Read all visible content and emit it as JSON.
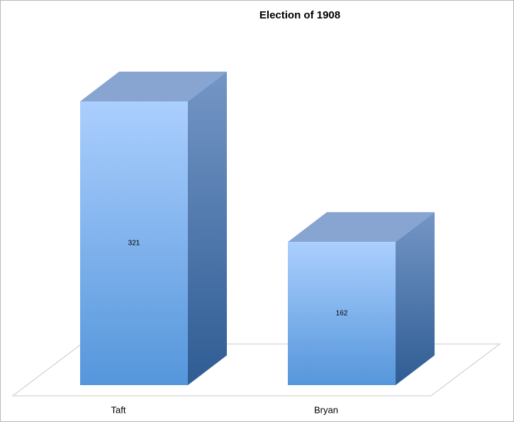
{
  "chart_data": {
    "type": "bar3d",
    "title": "Election of 1908",
    "categories": [
      "Taft",
      "Bryan"
    ],
    "values": [
      321,
      162
    ]
  }
}
